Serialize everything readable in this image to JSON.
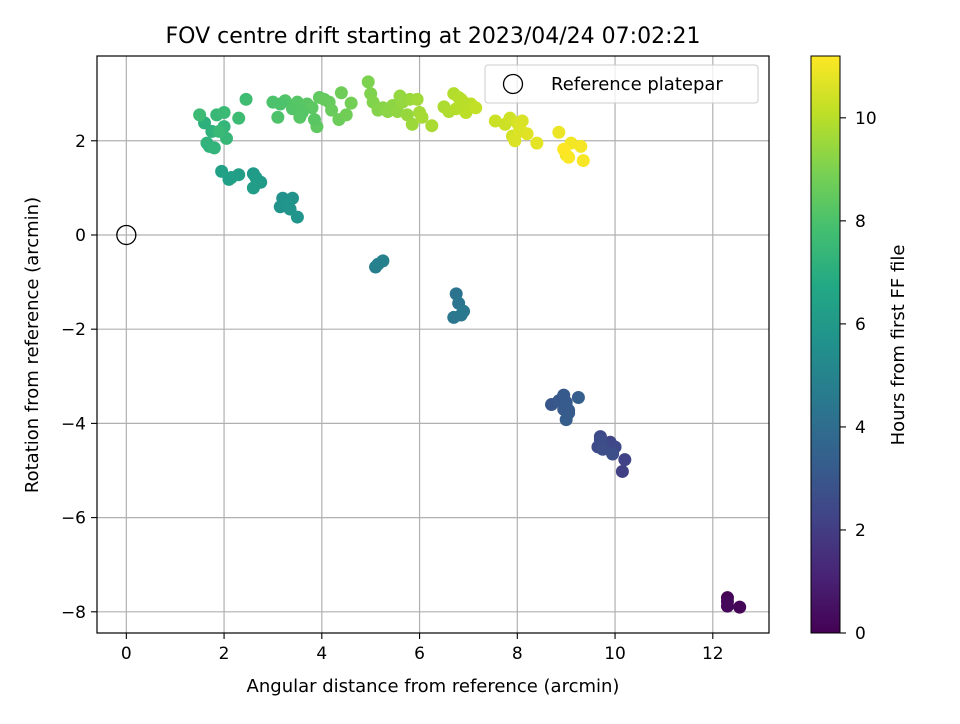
{
  "chart_data": {
    "type": "scatter",
    "title": "FOV centre drift starting at 2023/04/24 07:02:21",
    "xlabel": "Angular distance from reference (arcmin)",
    "ylabel": "Rotation from reference (arcmin)",
    "xlim": [
      -0.6,
      13.15
    ],
    "ylim": [
      -8.45,
      3.8
    ],
    "xticks": [
      0,
      2,
      4,
      6,
      8,
      10,
      12
    ],
    "yticks": [
      -8,
      -6,
      -4,
      -2,
      0,
      2
    ],
    "grid": true,
    "legend": {
      "placement": "top-right",
      "entries": [
        "Reference platepar"
      ]
    },
    "reference_point": {
      "x": 0.0,
      "y": 0.0,
      "label": "Reference platepar"
    },
    "colorbar": {
      "label": "Hours from first FF file",
      "colormap": "viridis",
      "range": [
        0,
        11.2
      ],
      "ticks": [
        0,
        2,
        4,
        6,
        8,
        10
      ]
    },
    "series": [
      {
        "x": [
          12.3,
          12.55,
          12.3,
          12.3,
          10.15,
          10.2,
          9.9,
          9.95,
          10.0,
          9.8,
          9.7,
          9.65,
          9.7,
          9.75,
          9.95,
          8.7,
          8.85,
          8.95,
          9.0,
          8.95,
          9.05,
          9.0,
          9.25,
          9.05,
          9.0,
          6.75,
          6.8,
          6.85,
          6.7,
          6.9,
          5.1,
          5.15,
          5.25,
          3.2,
          3.4,
          3.35,
          3.5,
          3.15,
          3.3,
          2.6,
          2.75,
          2.65,
          2.6,
          2.3,
          2.15,
          2.1,
          1.95,
          1.6,
          1.75,
          1.7,
          1.65,
          1.8,
          2.0,
          2.05,
          1.85,
          1.9,
          2.0,
          1.5,
          2.3,
          2.45,
          3.0,
          3.1,
          3.25,
          3.4,
          3.5,
          3.55,
          3.7,
          3.8,
          3.9,
          3.95,
          4.05,
          4.15,
          4.2,
          4.35,
          4.4,
          4.5,
          4.6,
          3.6,
          3.85,
          3.15,
          4.95,
          5.0,
          5.05,
          5.15,
          5.25,
          5.35,
          5.45,
          5.55,
          5.65,
          5.75,
          5.8,
          5.85,
          5.95,
          6.0,
          6.05,
          5.6,
          6.25,
          6.5,
          6.6,
          6.7,
          6.75,
          6.85,
          6.95,
          7.05,
          7.15,
          6.8,
          6.9,
          7.55,
          7.75,
          7.85,
          7.9,
          8.0,
          8.1,
          7.95,
          8.05,
          8.2,
          8.4,
          8.05,
          8.85,
          9.0,
          9.1,
          9.3,
          9.35,
          9.05,
          8.95
        ],
        "y": [
          -7.7,
          -7.9,
          -7.88,
          -7.78,
          -5.02,
          -4.77,
          -4.4,
          -4.6,
          -4.5,
          -4.45,
          -4.28,
          -4.5,
          -4.35,
          -4.55,
          -4.65,
          -3.6,
          -3.52,
          -3.4,
          -3.55,
          -3.7,
          -3.78,
          -3.92,
          -3.45,
          -3.72,
          -3.62,
          -1.25,
          -1.45,
          -1.7,
          -1.75,
          -1.62,
          -0.68,
          -0.62,
          -0.55,
          0.78,
          0.78,
          0.55,
          0.38,
          0.6,
          0.65,
          1.3,
          1.12,
          1.22,
          1.0,
          1.28,
          1.22,
          1.18,
          1.35,
          2.38,
          2.2,
          1.88,
          1.95,
          1.85,
          2.3,
          2.05,
          2.55,
          2.2,
          2.6,
          2.55,
          2.48,
          2.88,
          2.82,
          2.5,
          2.85,
          2.68,
          2.82,
          2.5,
          2.78,
          2.7,
          2.3,
          2.92,
          2.88,
          2.82,
          2.65,
          2.45,
          3.02,
          2.55,
          2.8,
          2.6,
          2.45,
          2.78,
          3.25,
          3.0,
          2.82,
          2.65,
          2.7,
          2.62,
          2.75,
          2.62,
          2.82,
          2.55,
          2.88,
          2.35,
          2.88,
          2.6,
          2.5,
          2.95,
          2.32,
          2.72,
          2.62,
          3.0,
          2.68,
          2.88,
          2.6,
          2.78,
          2.7,
          2.92,
          2.82,
          2.42,
          2.35,
          2.48,
          2.1,
          2.38,
          2.42,
          2.0,
          2.2,
          2.15,
          1.95,
          2.28,
          2.18,
          1.7,
          1.95,
          1.88,
          1.58,
          1.65,
          1.82
        ],
        "hours": [
          0.05,
          0.15,
          0.2,
          0.25,
          2.1,
          2.2,
          2.3,
          2.35,
          2.4,
          2.45,
          2.5,
          2.55,
          2.6,
          2.65,
          2.7,
          3.0,
          3.05,
          3.1,
          3.15,
          3.2,
          3.25,
          3.3,
          3.35,
          3.25,
          3.2,
          4.3,
          4.35,
          4.4,
          4.45,
          4.5,
          4.8,
          4.85,
          4.9,
          5.65,
          5.7,
          5.75,
          5.8,
          5.7,
          5.75,
          6.05,
          6.1,
          6.15,
          6.2,
          6.25,
          6.3,
          6.35,
          6.4,
          7.1,
          7.15,
          7.2,
          7.25,
          7.3,
          7.35,
          7.4,
          7.45,
          7.5,
          7.55,
          7.6,
          7.65,
          7.7,
          8.0,
          8.05,
          8.1,
          8.15,
          8.2,
          8.25,
          8.3,
          8.35,
          8.4,
          8.45,
          8.5,
          8.55,
          8.6,
          8.65,
          8.7,
          8.75,
          8.8,
          8.2,
          8.3,
          8.0,
          9.0,
          9.05,
          9.1,
          9.15,
          9.2,
          9.25,
          9.3,
          9.35,
          9.4,
          9.45,
          9.5,
          9.55,
          9.6,
          9.65,
          9.7,
          9.4,
          9.75,
          9.8,
          9.85,
          9.9,
          9.95,
          10.0,
          10.05,
          10.1,
          10.15,
          9.95,
          10.0,
          10.3,
          10.35,
          10.4,
          10.45,
          10.5,
          10.55,
          10.6,
          10.65,
          10.7,
          10.75,
          10.6,
          10.9,
          10.95,
          11.0,
          11.05,
          11.1,
          11.15,
          11.2
        ]
      }
    ]
  }
}
